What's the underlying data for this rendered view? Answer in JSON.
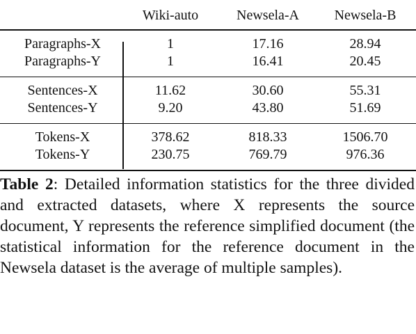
{
  "table": {
    "columns": [
      "Wiki-auto",
      "Newsela-A",
      "Newsela-B"
    ],
    "groups": [
      {
        "rows": [
          [
            "Paragraphs-X",
            "1",
            "17.16",
            "28.94"
          ],
          [
            "Paragraphs-Y",
            "1",
            "16.41",
            "20.45"
          ]
        ]
      },
      {
        "rows": [
          [
            "Sentences-X",
            "11.62",
            "30.60",
            "55.31"
          ],
          [
            "Sentences-Y",
            "9.20",
            "43.80",
            "51.69"
          ]
        ]
      },
      {
        "rows": [
          [
            "Tokens-X",
            "378.62",
            "818.33",
            "1506.70"
          ],
          [
            "Tokens-Y",
            "230.75",
            "769.79",
            "976.36"
          ]
        ]
      }
    ]
  },
  "caption": {
    "label": "Table 2",
    "text": ": Detailed information statistics for the three divided and extracted datasets, where X represents the source document, Y represents the reference simplified document (the statistical information for the reference document in the Newsela dataset is the average of multiple samples)."
  }
}
